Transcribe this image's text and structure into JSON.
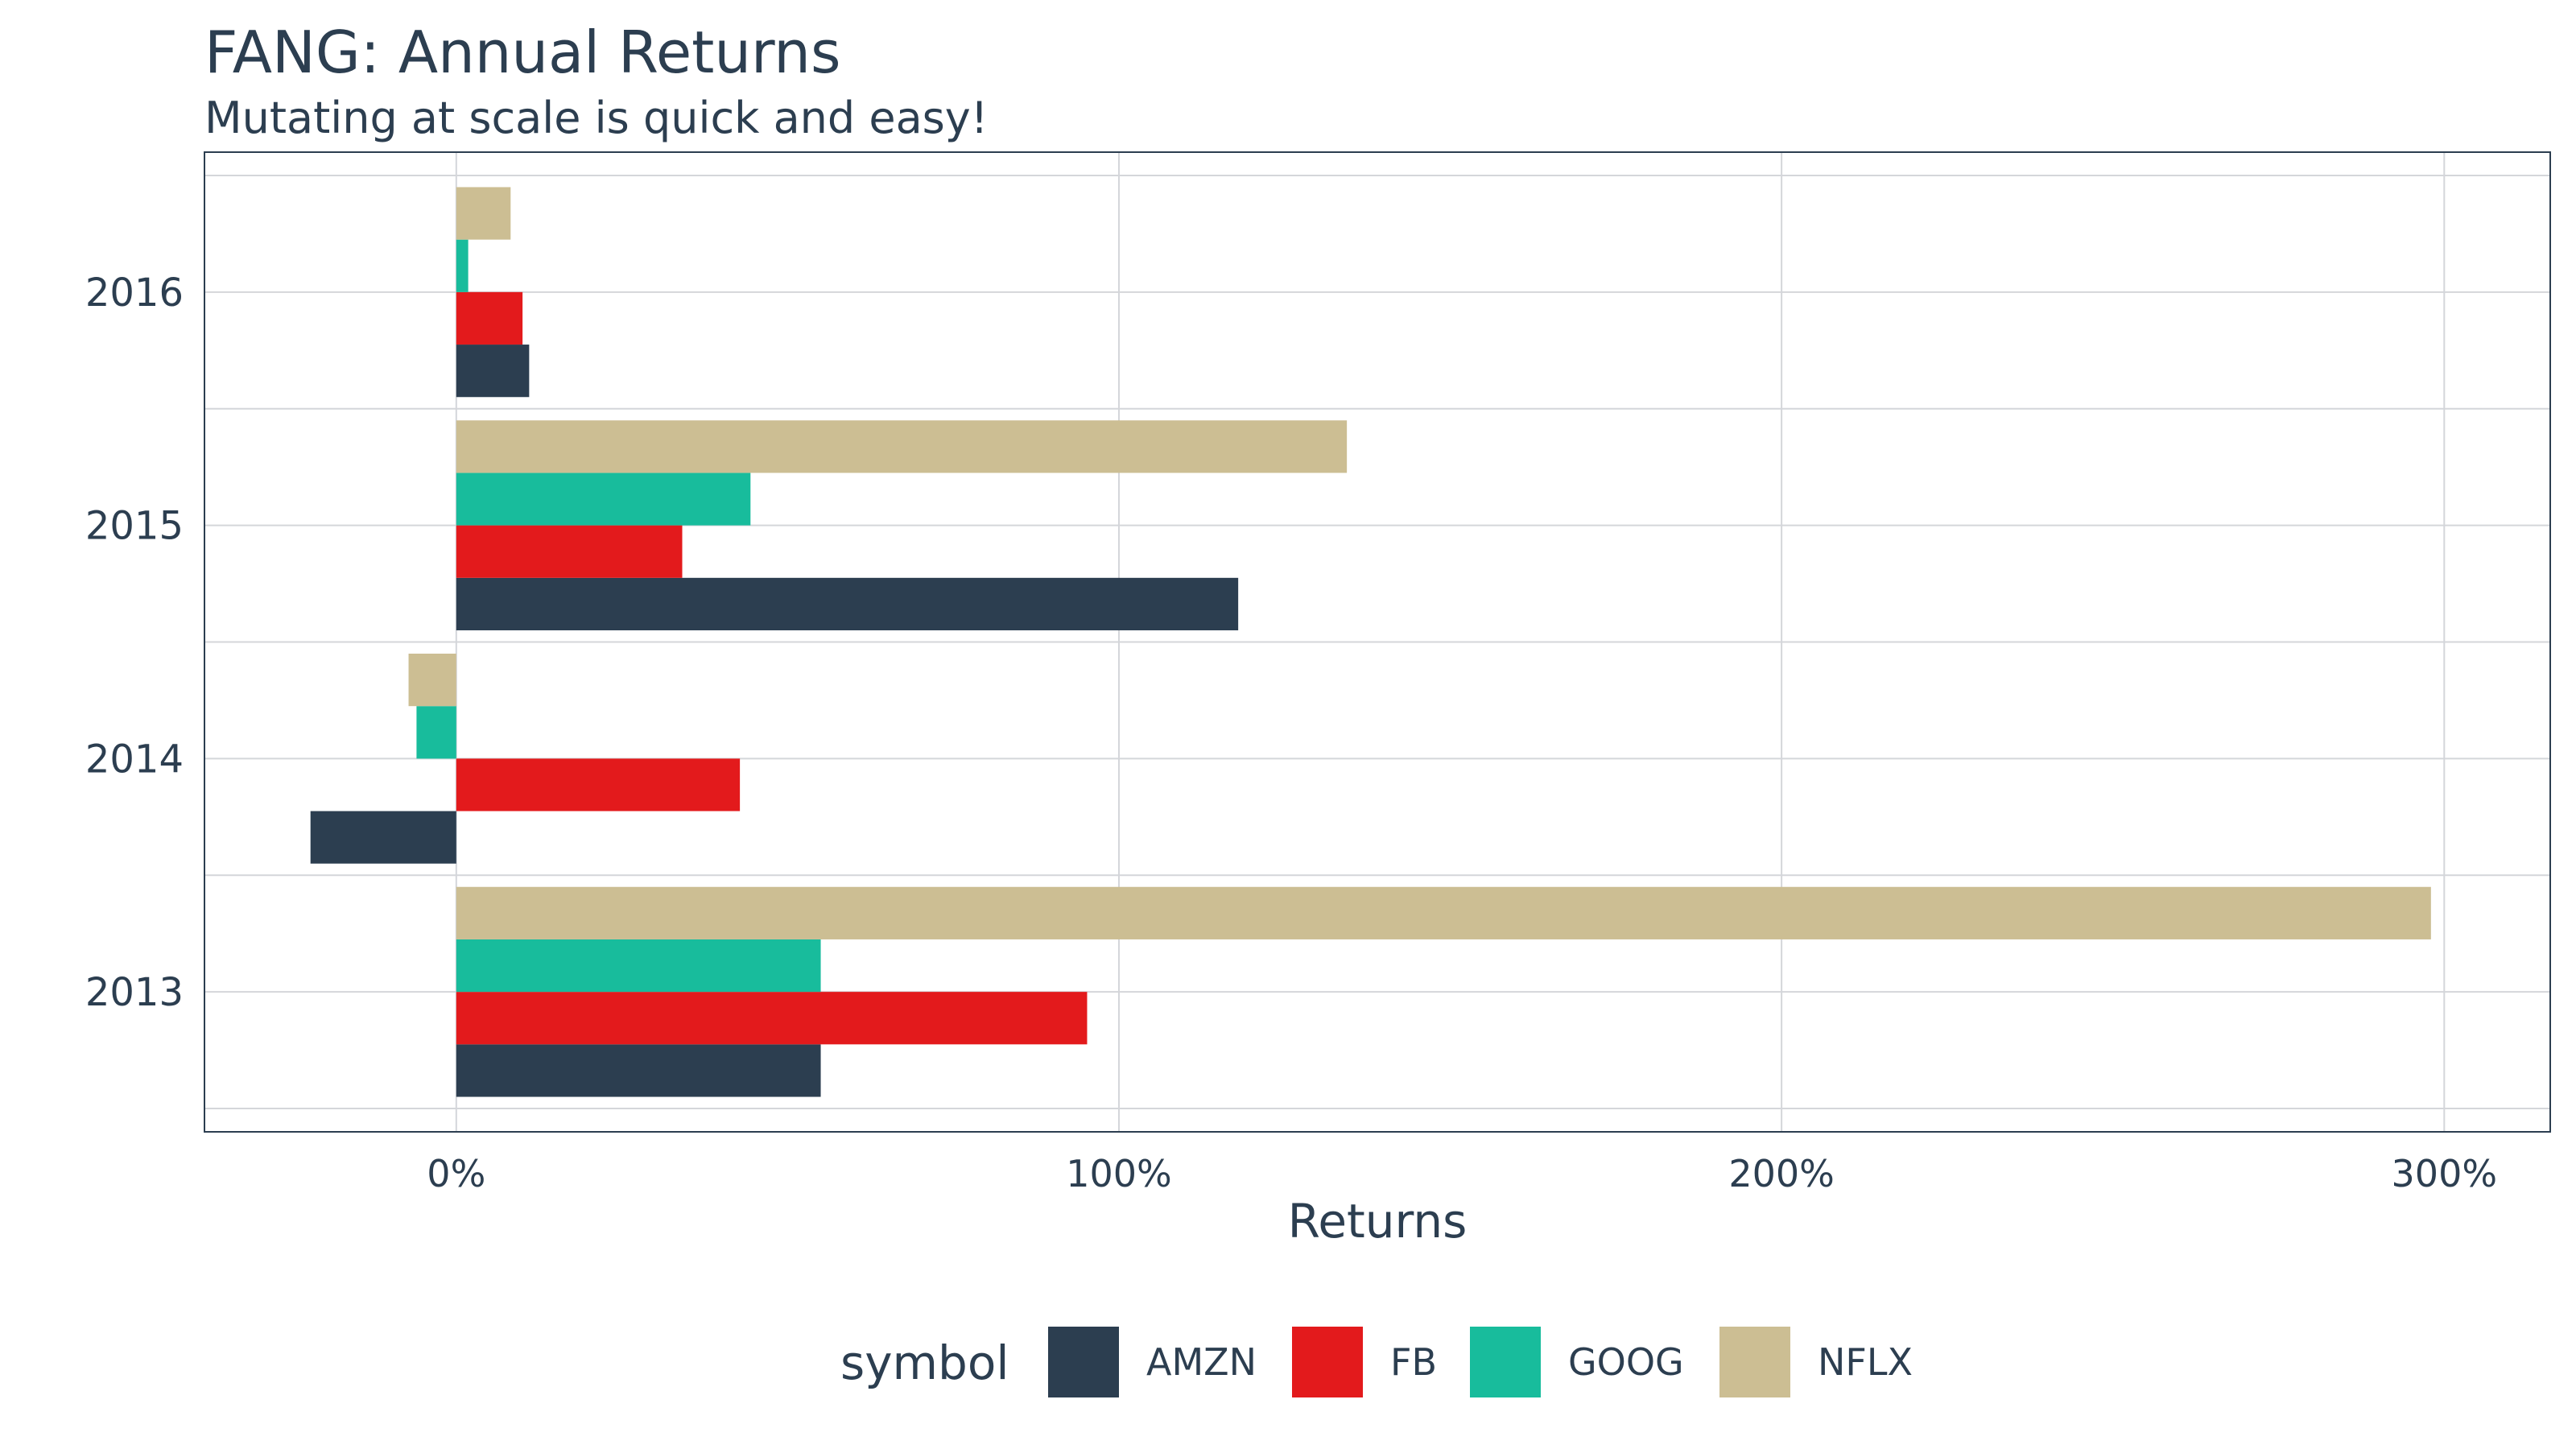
{
  "title": "FANG: Annual Returns",
  "subtitle": "Mutating at scale is quick and easy!",
  "chart_data": {
    "type": "bar",
    "orientation": "horizontal",
    "title": "FANG: Annual Returns",
    "subtitle": "Mutating at scale is quick and easy!",
    "xlabel": "Returns",
    "ylabel": "",
    "categories": [
      "2013",
      "2014",
      "2015",
      "2016"
    ],
    "series": [
      {
        "name": "AMZN",
        "color": "#2c3e50",
        "values": [
          0.55,
          -0.22,
          1.18,
          0.11
        ]
      },
      {
        "name": "FB",
        "color": "#e31a1c",
        "values": [
          0.952,
          0.428,
          0.341,
          0.1
        ]
      },
      {
        "name": "GOOG",
        "color": "#18bc9c",
        "values": [
          0.55,
          -0.06,
          0.444,
          0.018
        ]
      },
      {
        "name": "NFLX",
        "color": "#ccbe93",
        "values": [
          2.98,
          -0.072,
          1.344,
          0.082
        ]
      }
    ],
    "xlim": [
      -0.38,
      3.16
    ],
    "xticks": [
      0,
      1,
      2,
      3
    ],
    "xtick_labels": [
      "0%",
      "100%",
      "200%",
      "300%"
    ],
    "grid": true,
    "legend": {
      "title": "symbol",
      "position": "bottom"
    }
  }
}
